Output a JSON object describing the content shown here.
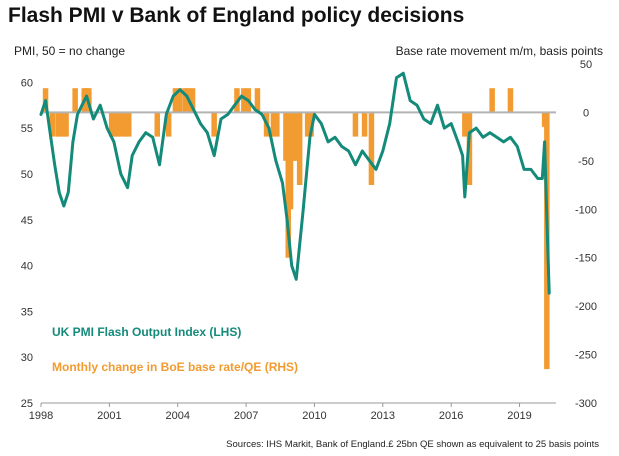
{
  "title": "Flash PMI v Bank of England policy decisions",
  "left_axis_label": "PMI, 50 = no change",
  "right_axis_label": "Base rate movement m/m, basis points",
  "legend": {
    "pmi": "UK PMI Flash Output Index (LHS)",
    "boe": "Monthly change in BoE base rate/QE (RHS)"
  },
  "source": "Sources: IHS Markit, Bank of England.£ 25bn QE shown as equivalent to 25 basis points",
  "colors": {
    "pmi": "#148a7a",
    "boe": "#f29b30",
    "zero_line": "#b3b3b3"
  },
  "chart_data": {
    "type": "line",
    "title": "Flash PMI v Bank of England policy decisions",
    "x_ticks": [
      "1998",
      "2001",
      "2004",
      "2007",
      "2010",
      "2013",
      "2016",
      "2019"
    ],
    "y_left_ticks": [
      "25",
      "30",
      "35",
      "40",
      "45",
      "50",
      "55",
      "60"
    ],
    "y_right_ticks": [
      "-300",
      "-250",
      "-200",
      "-150",
      "-100",
      "-50",
      "0",
      "50"
    ],
    "y_left_lim": [
      25,
      62
    ],
    "y_right_lim": [
      -300,
      50
    ],
    "x_lim": [
      1998.0,
      2020.6
    ],
    "grid": false,
    "series": [
      {
        "name": "UK PMI Flash Output Index (LHS)",
        "axis": "left",
        "type": "line",
        "x": [
          1998.0,
          1998.2,
          1998.4,
          1998.6,
          1998.8,
          1999.0,
          1999.2,
          1999.4,
          1999.6,
          1999.8,
          2000.0,
          2000.3,
          2000.6,
          2000.9,
          2001.2,
          2001.5,
          2001.8,
          2002.0,
          2002.3,
          2002.6,
          2002.9,
          2003.2,
          2003.5,
          2003.8,
          2004.1,
          2004.4,
          2004.7,
          2005.0,
          2005.3,
          2005.6,
          2005.9,
          2006.2,
          2006.5,
          2006.8,
          2007.1,
          2007.4,
          2007.7,
          2008.0,
          2008.3,
          2008.6,
          2008.8,
          2009.0,
          2009.2,
          2009.5,
          2009.8,
          2010.0,
          2010.3,
          2010.6,
          2010.9,
          2011.2,
          2011.5,
          2011.8,
          2012.1,
          2012.4,
          2012.7,
          2013.0,
          2013.3,
          2013.6,
          2013.9,
          2014.2,
          2014.5,
          2014.8,
          2015.1,
          2015.4,
          2015.7,
          2016.0,
          2016.3,
          2016.5,
          2016.6,
          2016.8,
          2017.1,
          2017.4,
          2017.7,
          2018.0,
          2018.3,
          2018.6,
          2018.9,
          2019.2,
          2019.5,
          2019.8,
          2020.0,
          2020.1,
          2020.2,
          2020.3
        ],
        "values": [
          56.5,
          58.0,
          54.5,
          51.0,
          48.0,
          46.5,
          48.0,
          53.5,
          56.5,
          57.5,
          58.5,
          56.0,
          57.5,
          55.0,
          53.5,
          50.0,
          48.5,
          52.0,
          53.5,
          54.5,
          54.0,
          51.0,
          56.5,
          58.5,
          59.2,
          58.5,
          57.0,
          55.5,
          54.5,
          52.0,
          56.0,
          56.5,
          57.5,
          58.5,
          58.0,
          57.0,
          56.5,
          55.0,
          51.5,
          49.0,
          45.0,
          40.0,
          38.5,
          46.0,
          54.0,
          56.5,
          55.5,
          53.5,
          54.0,
          53.0,
          52.5,
          51.0,
          52.5,
          51.5,
          50.5,
          52.5,
          55.5,
          60.5,
          61.0,
          58.0,
          57.5,
          56.0,
          55.5,
          57.5,
          55.0,
          55.5,
          53.5,
          52.0,
          47.5,
          54.5,
          55.0,
          54.0,
          54.5,
          54.0,
          53.5,
          54.0,
          53.0,
          50.5,
          50.5,
          49.5,
          49.5,
          53.5,
          45.0,
          37.0
        ]
      },
      {
        "name": "Monthly change in BoE base rate/QE (RHS)",
        "axis": "right",
        "type": "bar",
        "x": [
          1998.2,
          1998.5,
          1998.75,
          1998.85,
          1999.0,
          1999.1,
          1999.5,
          1999.9,
          2000.0,
          2000.1,
          2001.1,
          2001.2,
          2001.35,
          2001.5,
          2001.7,
          2001.85,
          2003.1,
          2003.6,
          2003.9,
          2004.1,
          2004.35,
          2004.45,
          2004.65,
          2005.6,
          2006.6,
          2006.9,
          2007.1,
          2007.5,
          2007.9,
          2008.2,
          2008.35,
          2008.75,
          2008.85,
          2008.95,
          2009.05,
          2009.15,
          2009.35,
          2009.7,
          2009.85,
          2011.8,
          2012.2,
          2012.5,
          2016.6,
          2016.8,
          2017.8,
          2018.6,
          2020.1,
          2020.2
        ],
        "values": [
          25,
          -25,
          -25,
          -25,
          -25,
          -25,
          25,
          25,
          25,
          25,
          -25,
          -25,
          -25,
          -25,
          -25,
          -25,
          -25,
          -25,
          25,
          25,
          25,
          25,
          25,
          -25,
          25,
          25,
          25,
          25,
          -25,
          -25,
          -25,
          -50,
          -150,
          -100,
          -50,
          -50,
          -75,
          -25,
          -25,
          -25,
          -25,
          -75,
          -25,
          -75,
          25,
          25,
          -15,
          -265
        ]
      }
    ],
    "zero_line_right": 0
  }
}
